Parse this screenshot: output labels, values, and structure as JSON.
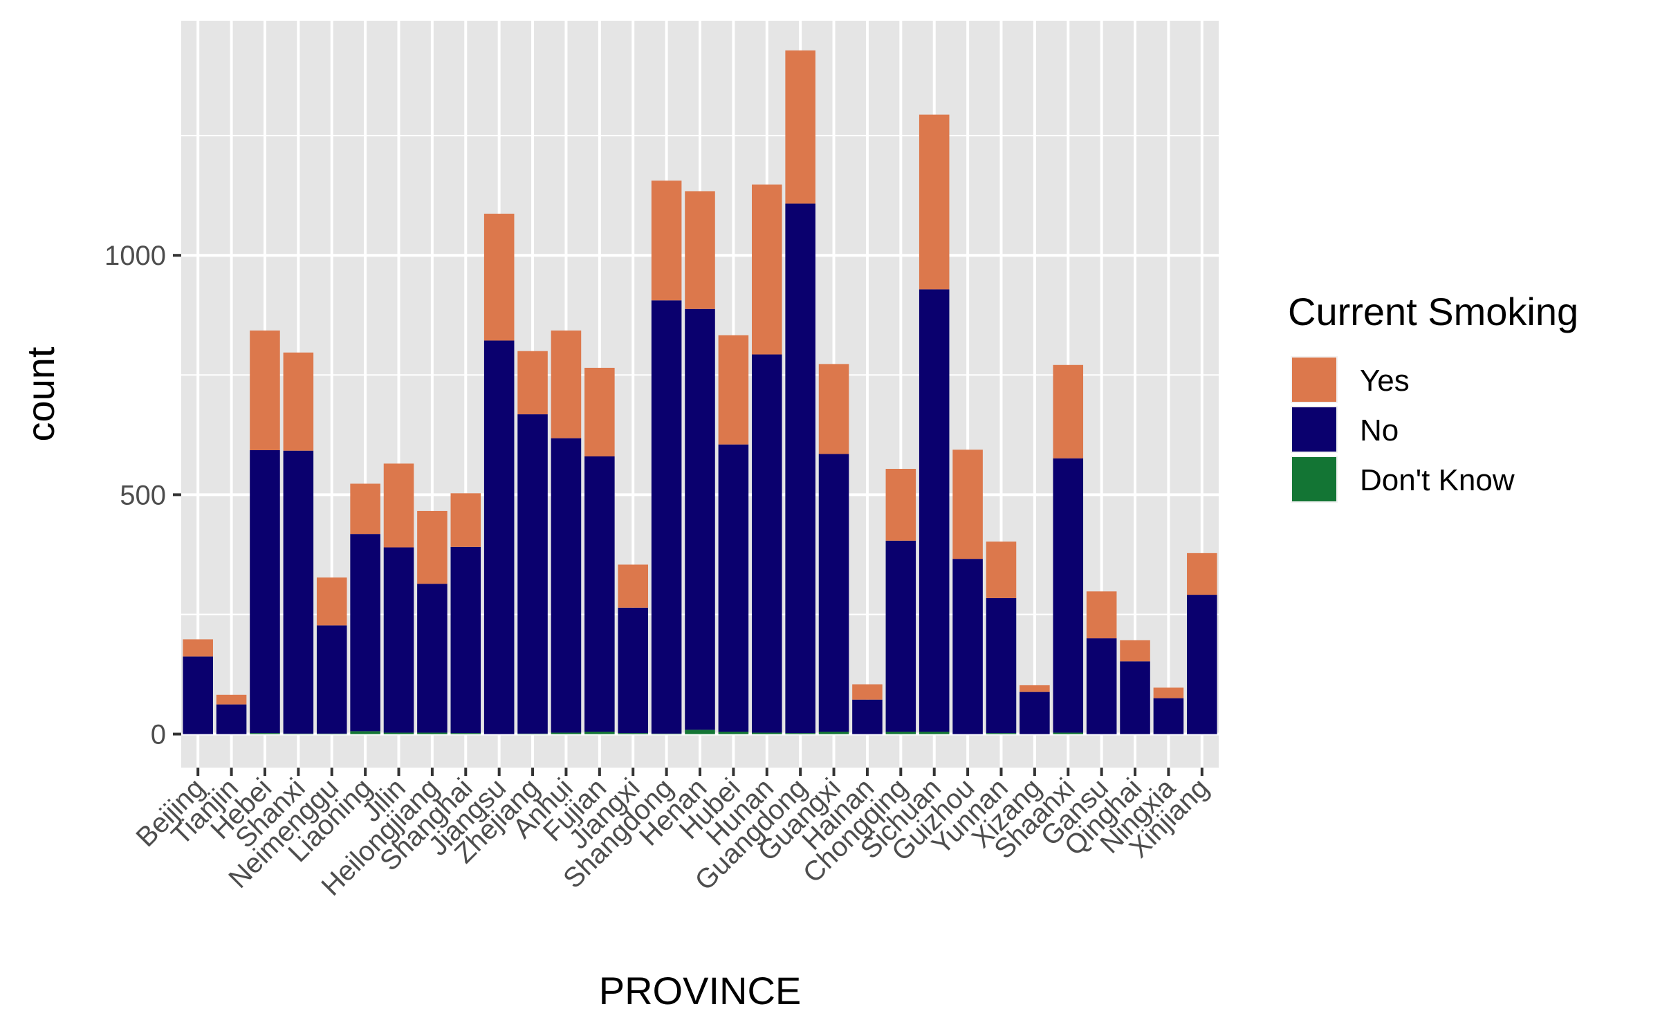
{
  "chart_data": {
    "type": "bar",
    "stacked": true,
    "title": "",
    "xlabel": "PROVINCE",
    "ylabel": "count",
    "ylim": [
      -70,
      1490
    ],
    "yticks": [
      0,
      500,
      1000
    ],
    "grid": true,
    "legend_position": "right",
    "legend_title": "Current Smoking",
    "categories": [
      "Beijing",
      "Tianjin",
      "Hebei",
      "Shanxi",
      "Neimenggu",
      "Liaoning",
      "Jilin",
      "Heilongjiang",
      "Shanghai",
      "Jiangsu",
      "Zhejiang",
      "Anhui",
      "Fujian",
      "Jiangxi",
      "Shangdong",
      "Henan",
      "Hubei",
      "Hunan",
      "Guangdong",
      "Guangxi",
      "Hainan",
      "Chongqing",
      "Sichuan",
      "Guizhou",
      "Yunnan",
      "Xizang",
      "Shaanxi",
      "Gansu",
      "Qinghai",
      "Ningxia",
      "Xinjiang"
    ],
    "series": [
      {
        "name": "Don't Know",
        "color": "#137534",
        "values": [
          0,
          0,
          2,
          1,
          1,
          6,
          3,
          3,
          2,
          0,
          1,
          3,
          5,
          2,
          1,
          9,
          5,
          3,
          2,
          5,
          0,
          5,
          5,
          0,
          2,
          0,
          3,
          0,
          0,
          0,
          0
        ]
      },
      {
        "name": "No",
        "color": "#0a006e",
        "values": [
          162,
          62,
          591,
          591,
          226,
          412,
          387,
          311,
          389,
          822,
          667,
          615,
          575,
          262,
          905,
          879,
          600,
          790,
          1106,
          580,
          72,
          399,
          924,
          366,
          282,
          88,
          573,
          200,
          152,
          75,
          291
        ]
      },
      {
        "name": "Yes",
        "color": "#dc784c",
        "values": [
          36,
          20,
          250,
          205,
          100,
          105,
          175,
          152,
          112,
          265,
          132,
          225,
          185,
          90,
          250,
          246,
          228,
          355,
          320,
          188,
          32,
          150,
          365,
          228,
          118,
          14,
          195,
          98,
          44,
          22,
          87
        ]
      }
    ]
  }
}
